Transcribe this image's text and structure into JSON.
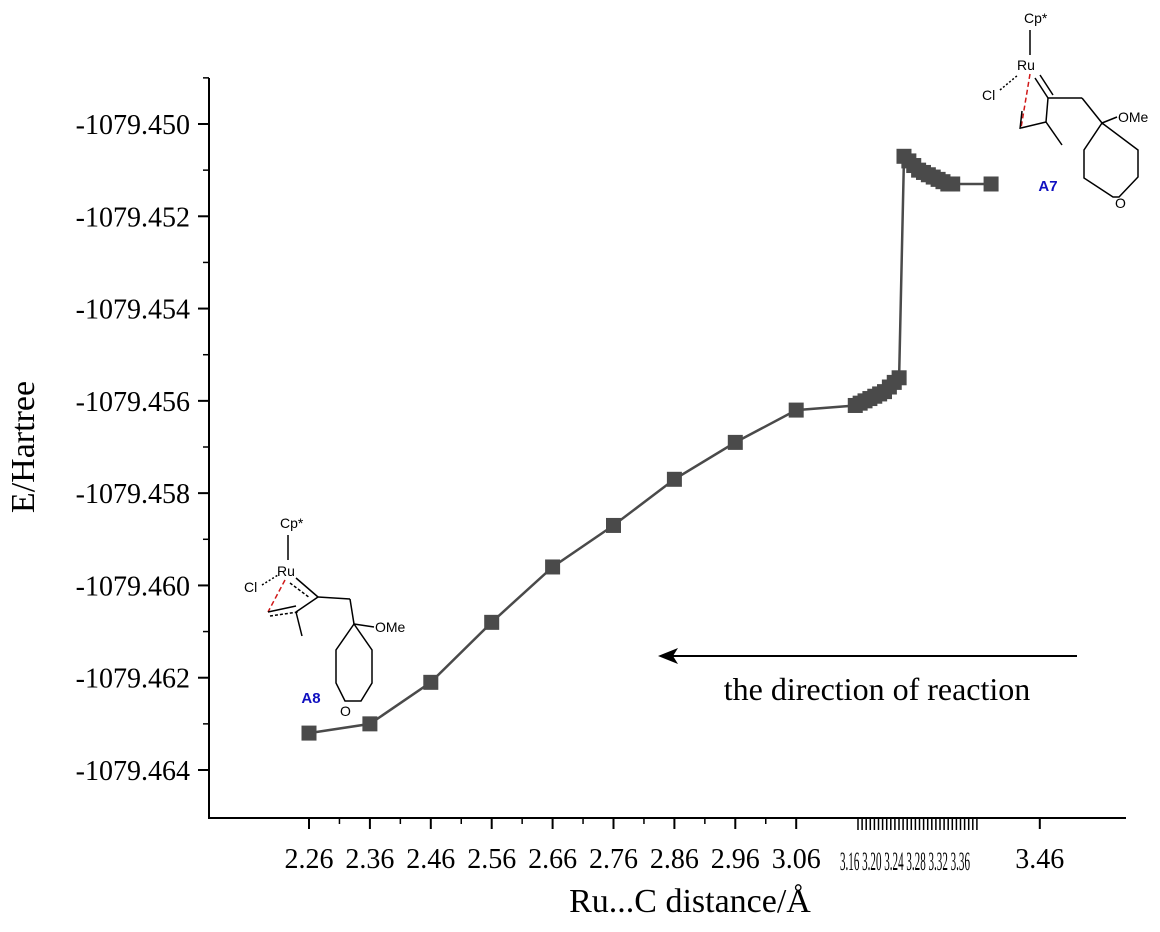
{
  "chart_data": {
    "type": "line",
    "xlabel": "Ru...C distance/Å",
    "ylabel": "E/Hartree",
    "x_ticks": [
      "2.26",
      "2.36",
      "2.46",
      "2.56",
      "2.66",
      "2.76",
      "2.86",
      "2.96",
      "3.06",
      "3.46"
    ],
    "y_ticks": [
      "-1079.450",
      "-1079.452",
      "-1079.454",
      "-1079.456",
      "-1079.458",
      "-1079.460",
      "-1079.462",
      "-1079.464"
    ],
    "ylim": [
      -1079.465,
      -1079.4488
    ],
    "series": [
      {
        "name": "",
        "points": [
          {
            "pos": 0,
            "y": -1079.4632
          },
          {
            "pos": 1,
            "y": -1079.463
          },
          {
            "pos": 2,
            "y": -1079.4621
          },
          {
            "pos": 3,
            "y": -1079.4608
          },
          {
            "pos": 4,
            "y": -1079.4596
          },
          {
            "pos": 5,
            "y": -1079.4587
          },
          {
            "pos": 6,
            "y": -1079.4577
          },
          {
            "pos": 7,
            "y": -1079.4569
          },
          {
            "pos": 8,
            "y": -1079.4562
          },
          {
            "pos": 8.97,
            "y": -1079.4561
          },
          {
            "pos": 9.05,
            "y": -1079.45605
          },
          {
            "pos": 9.13,
            "y": -1079.456
          },
          {
            "pos": 9.21,
            "y": -1079.45595
          },
          {
            "pos": 9.29,
            "y": -1079.4559
          },
          {
            "pos": 9.37,
            "y": -1079.45585
          },
          {
            "pos": 9.45,
            "y": -1079.4558
          },
          {
            "pos": 9.53,
            "y": -1079.4557
          },
          {
            "pos": 9.61,
            "y": -1079.4556
          },
          {
            "pos": 9.69,
            "y": -1079.4555
          },
          {
            "pos": 9.77,
            "y": -1079.4507
          },
          {
            "pos": 9.85,
            "y": -1079.4508
          },
          {
            "pos": 9.93,
            "y": -1079.4509
          },
          {
            "pos": 10.01,
            "y": -1079.451
          },
          {
            "pos": 10.09,
            "y": -1079.45105
          },
          {
            "pos": 10.17,
            "y": -1079.4511
          },
          {
            "pos": 10.25,
            "y": -1079.45115
          },
          {
            "pos": 10.33,
            "y": -1079.4512
          },
          {
            "pos": 10.41,
            "y": -1079.45125
          },
          {
            "pos": 10.49,
            "y": -1079.4513
          },
          {
            "pos": 10.57,
            "y": -1079.4513
          },
          {
            "pos": 11.2,
            "y": -1079.4513
          }
        ]
      }
    ],
    "marker": "square",
    "line_color": "#4a4a4a",
    "marker_color": "#4a4a4a",
    "annotations": {
      "arrow_text": "the direction of reaction",
      "label_a7": "A7",
      "label_a8": "A8",
      "label_color": "#1010c0"
    },
    "dense_tick_labels": "3.16 3.20 3.24 3.28 3.32 3.36",
    "structure_a7": {
      "cp": "Cp*",
      "ru": "Ru",
      "cl": "Cl",
      "ome": "OMe",
      "o": "O"
    },
    "structure_a8": {
      "cp": "Cp*",
      "ru": "Ru",
      "cl": "Cl",
      "ome": "OMe",
      "o": "O"
    }
  }
}
